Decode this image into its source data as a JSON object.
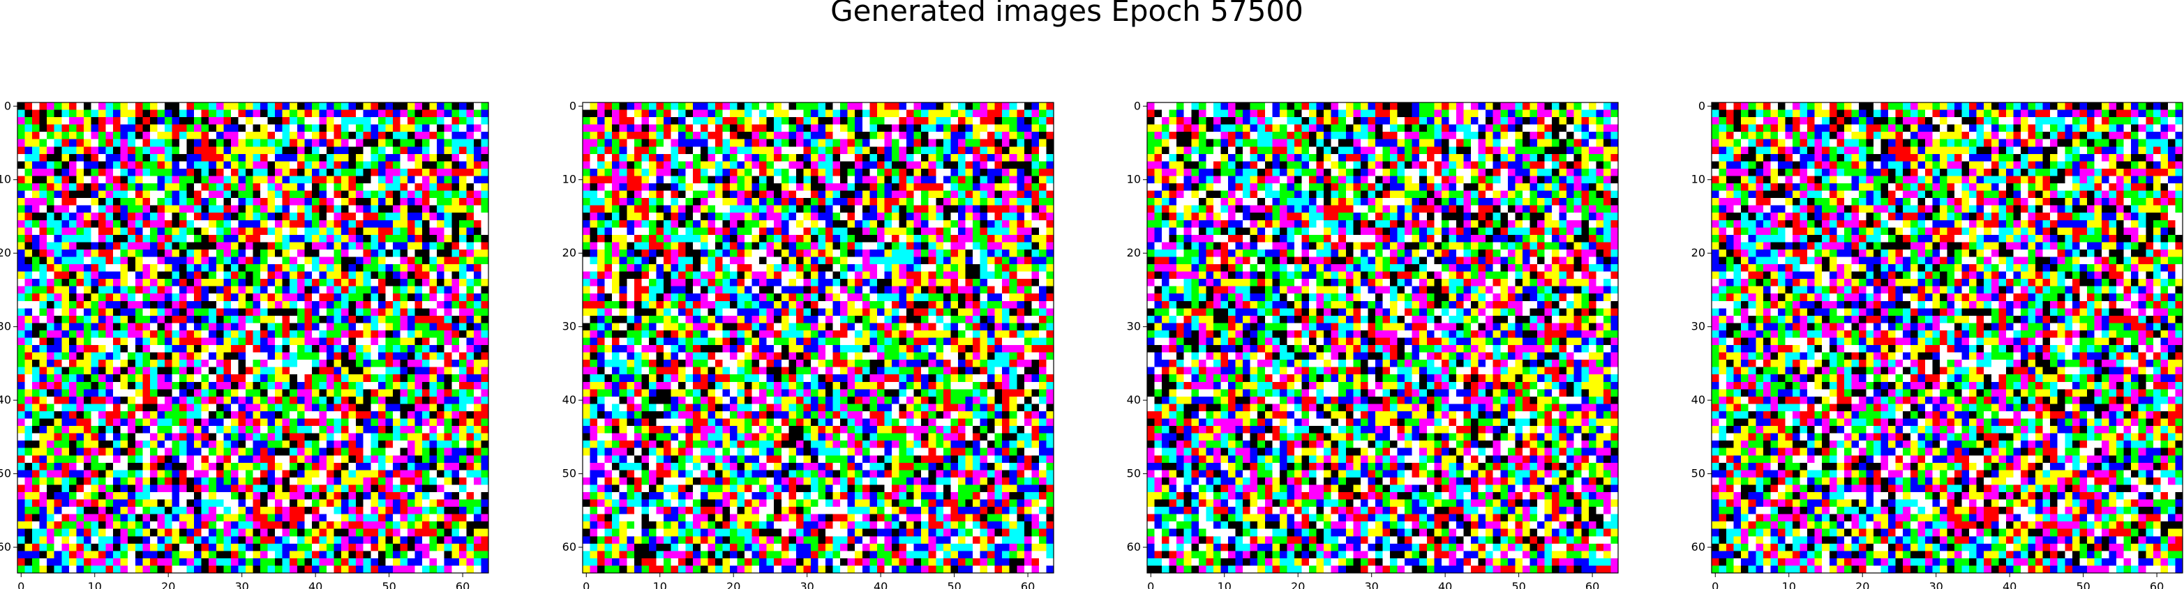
{
  "title": "Generated images Epoch 57500",
  "chart_data": [
    {
      "type": "heatmap",
      "rows": 64,
      "cols": 64,
      "xlim": [
        0,
        63
      ],
      "ylim": [
        63,
        0
      ],
      "xticks": [
        "0",
        "10",
        "20",
        "30",
        "40",
        "50",
        "60"
      ],
      "yticks": [
        "0",
        "10",
        "20",
        "30",
        "40",
        "50",
        "60"
      ],
      "seed": 57501,
      "palette": [
        "#000000",
        "#ff0000",
        "#00ff00",
        "#0000ff",
        "#ffff00",
        "#ff00ff",
        "#00ffff",
        "#ffffff"
      ]
    },
    {
      "type": "heatmap",
      "rows": 64,
      "cols": 64,
      "xlim": [
        0,
        63
      ],
      "ylim": [
        63,
        0
      ],
      "xticks": [
        "0",
        "10",
        "20",
        "30",
        "40",
        "50",
        "60"
      ],
      "yticks": [
        "0",
        "10",
        "20",
        "30",
        "40",
        "50",
        "60"
      ],
      "seed": 57502,
      "palette": [
        "#000000",
        "#ff0000",
        "#00ff00",
        "#0000ff",
        "#ffff00",
        "#ff00ff",
        "#00ffff",
        "#ffffff"
      ]
    },
    {
      "type": "heatmap",
      "rows": 64,
      "cols": 64,
      "xlim": [
        0,
        63
      ],
      "ylim": [
        63,
        0
      ],
      "xticks": [
        "0",
        "10",
        "20",
        "30",
        "40",
        "50",
        "60"
      ],
      "yticks": [
        "0",
        "10",
        "20",
        "30",
        "40",
        "50",
        "60"
      ],
      "seed": 57503,
      "palette": [
        "#000000",
        "#ff0000",
        "#00ff00",
        "#0000ff",
        "#ffff00",
        "#ff00ff",
        "#00ffff",
        "#ffffff"
      ]
    },
    {
      "type": "heatmap",
      "rows": 64,
      "cols": 64,
      "xlim": [
        0,
        63
      ],
      "ylim": [
        63,
        0
      ],
      "xticks": [
        "0",
        "10",
        "20",
        "30",
        "40",
        "50",
        "60"
      ],
      "yticks": [
        "0",
        "10",
        "20",
        "30",
        "40",
        "50",
        "60"
      ],
      "seed": 57501,
      "palette": [
        "#000000",
        "#ff0000",
        "#00ff00",
        "#0000ff",
        "#ffff00",
        "#ff00ff",
        "#00ffff",
        "#ffffff"
      ]
    }
  ]
}
